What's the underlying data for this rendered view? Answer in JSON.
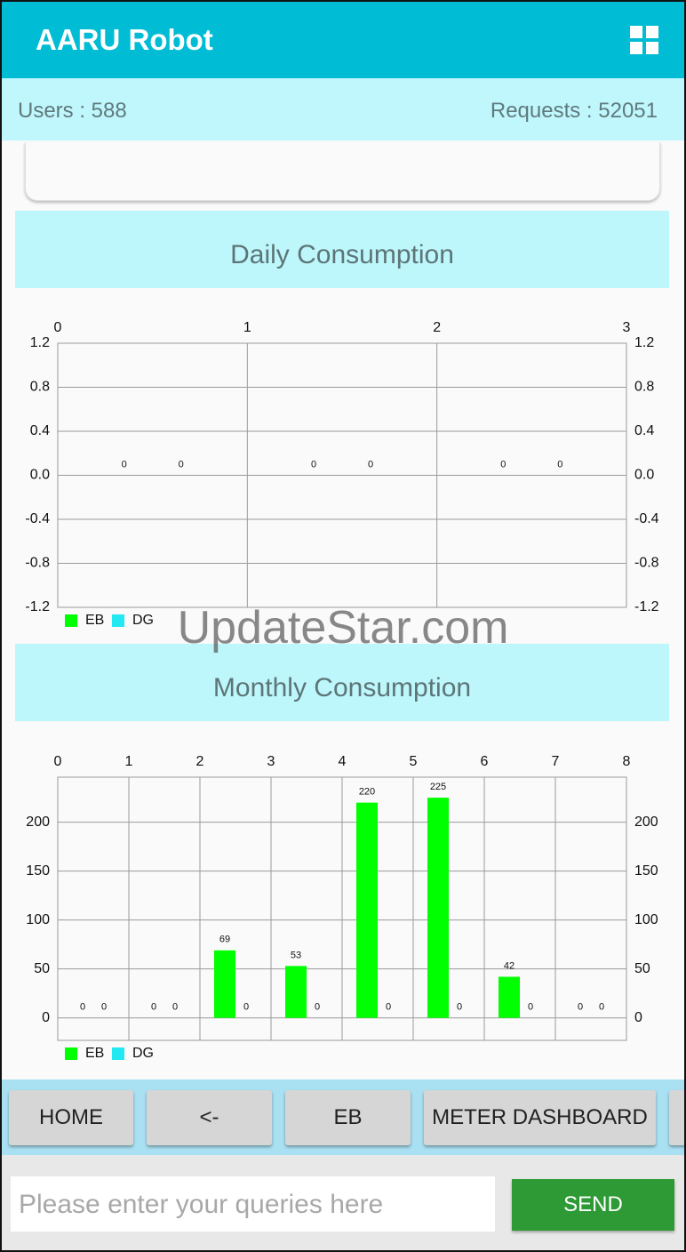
{
  "app_bar": {
    "title": "AARU Robot"
  },
  "stats": {
    "users": "Users : 588",
    "requests": "Requests : 52051"
  },
  "watermark": "UpdateStar.com",
  "chart_data": [
    {
      "type": "bar",
      "title": "Daily Consumption",
      "x": [
        0.5,
        1.5,
        2.5
      ],
      "xlim": [
        0,
        3
      ],
      "xticks": [
        0,
        1,
        2,
        3
      ],
      "ylim": [
        -1.2,
        1.2
      ],
      "yticks": [
        -1.2,
        -0.8,
        -0.4,
        {
          "value": 0,
          "label": "0.0"
        },
        0.4,
        0.8,
        1.2
      ],
      "grid": true,
      "series": [
        {
          "name": "EB",
          "color": "#00ff00",
          "values": [
            0,
            0,
            0
          ]
        },
        {
          "name": "DG",
          "color": "#22e8f2",
          "values": [
            0,
            0,
            0
          ]
        }
      ]
    },
    {
      "type": "bar",
      "title": "Monthly Consumption",
      "x": [
        0.5,
        1.5,
        2.5,
        3.5,
        4.5,
        5.5,
        6.5,
        7.5
      ],
      "xlim": [
        0,
        8
      ],
      "xticks": [
        0,
        1,
        2,
        3,
        4,
        5,
        6,
        7,
        8
      ],
      "ylim": [
        -23,
        246
      ],
      "yticks": [
        0,
        50,
        100,
        150,
        200
      ],
      "grid": true,
      "series": [
        {
          "name": "EB",
          "color": "#00ff00",
          "values": [
            0,
            0,
            69,
            53,
            220,
            225,
            42,
            0
          ]
        },
        {
          "name": "DG",
          "color": "#22e8f2",
          "values": [
            0,
            0,
            0,
            0,
            0,
            0,
            0,
            0
          ]
        }
      ]
    }
  ],
  "buttons": [
    "HOME",
    "<-",
    "EB",
    "METER DASHBOARD"
  ],
  "input": {
    "placeholder": "Please enter your queries here",
    "send": "SEND"
  }
}
